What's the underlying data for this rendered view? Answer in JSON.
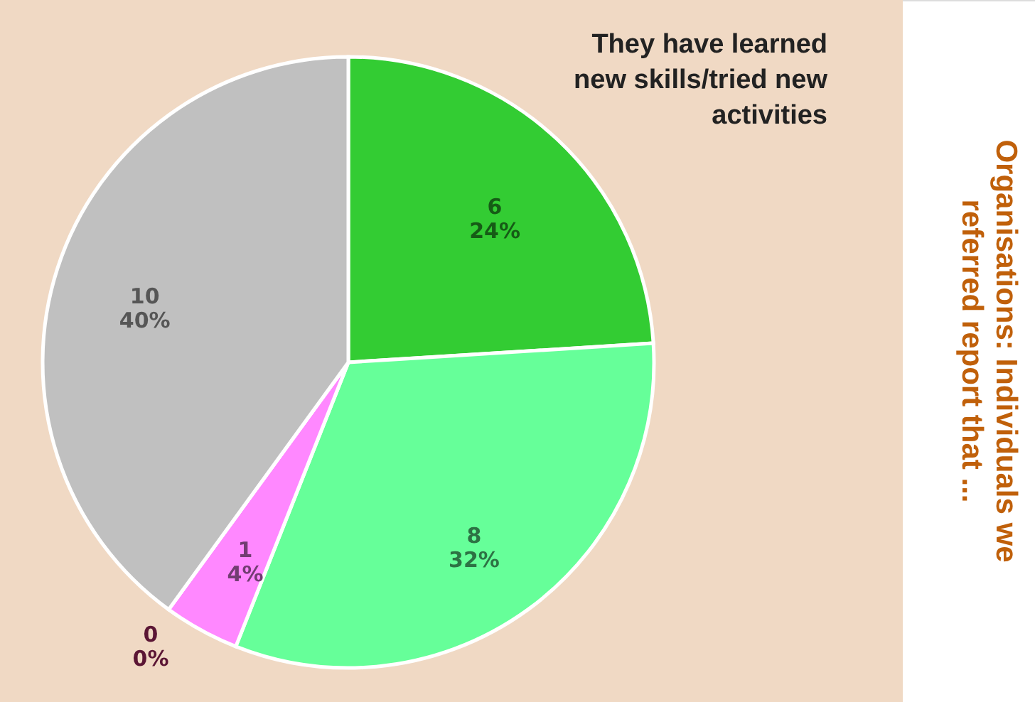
{
  "chart_data": {
    "type": "pie",
    "title": "Organisations: Individuals we referred report that ...",
    "subtitle": "They have learned new skills/tried new activities",
    "categories": [
      null,
      null,
      null,
      null,
      null
    ],
    "values": [
      6,
      8,
      1,
      0,
      10
    ],
    "colors": [
      "#33cc33",
      "#66ff99",
      "#ff88ff",
      "#cc3377",
      "#c0c0c0"
    ],
    "value_labels": [
      "6\n24%",
      "8\n32%",
      "1\n4%",
      "0\n0%",
      "10\n40%"
    ]
  }
}
